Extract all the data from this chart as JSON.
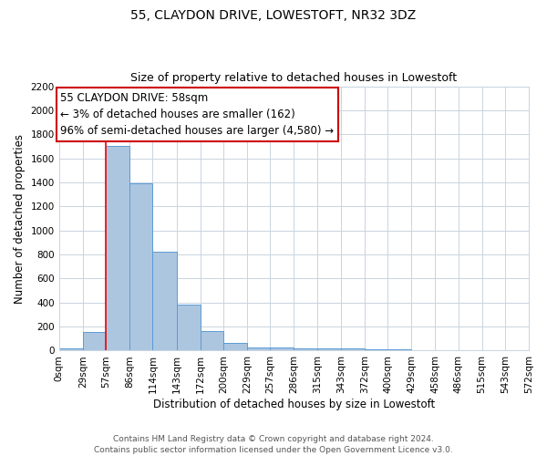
{
  "title": "55, CLAYDON DRIVE, LOWESTOFT, NR32 3DZ",
  "subtitle": "Size of property relative to detached houses in Lowestoft",
  "xlabel": "Distribution of detached houses by size in Lowestoft",
  "ylabel": "Number of detached properties",
  "bin_labels": [
    "0sqm",
    "29sqm",
    "57sqm",
    "86sqm",
    "114sqm",
    "143sqm",
    "172sqm",
    "200sqm",
    "229sqm",
    "257sqm",
    "286sqm",
    "315sqm",
    "343sqm",
    "372sqm",
    "400sqm",
    "429sqm",
    "458sqm",
    "486sqm",
    "515sqm",
    "543sqm",
    "572sqm"
  ],
  "bin_edges": [
    0,
    29,
    57,
    86,
    114,
    143,
    172,
    200,
    229,
    257,
    286,
    315,
    343,
    372,
    400,
    429,
    458,
    486,
    515,
    543,
    572
  ],
  "bar_heights": [
    20,
    155,
    1700,
    1390,
    825,
    385,
    165,
    65,
    25,
    25,
    20,
    20,
    20,
    10,
    10,
    0,
    0,
    0,
    0,
    0
  ],
  "bar_color": "#adc6e0",
  "bar_edge_color": "#5b9bd5",
  "vline_x": 57,
  "vline_color": "red",
  "ylim": [
    0,
    2200
  ],
  "yticks": [
    0,
    200,
    400,
    600,
    800,
    1000,
    1200,
    1400,
    1600,
    1800,
    2000,
    2200
  ],
  "annotation_title": "55 CLAYDON DRIVE: 58sqm",
  "annotation_line1": "← 3% of detached houses are smaller (162)",
  "annotation_line2": "96% of semi-detached houses are larger (4,580) →",
  "annotation_box_color": "#ffffff",
  "annotation_box_edge": "#cc0000",
  "footer_line1": "Contains HM Land Registry data © Crown copyright and database right 2024.",
  "footer_line2": "Contains public sector information licensed under the Open Government Licence v3.0.",
  "bg_color": "#ffffff",
  "grid_color": "#c8d4e0",
  "title_fontsize": 10,
  "subtitle_fontsize": 9,
  "axis_label_fontsize": 8.5,
  "tick_label_fontsize": 7.5,
  "annotation_fontsize": 8.5,
  "footer_fontsize": 6.5
}
